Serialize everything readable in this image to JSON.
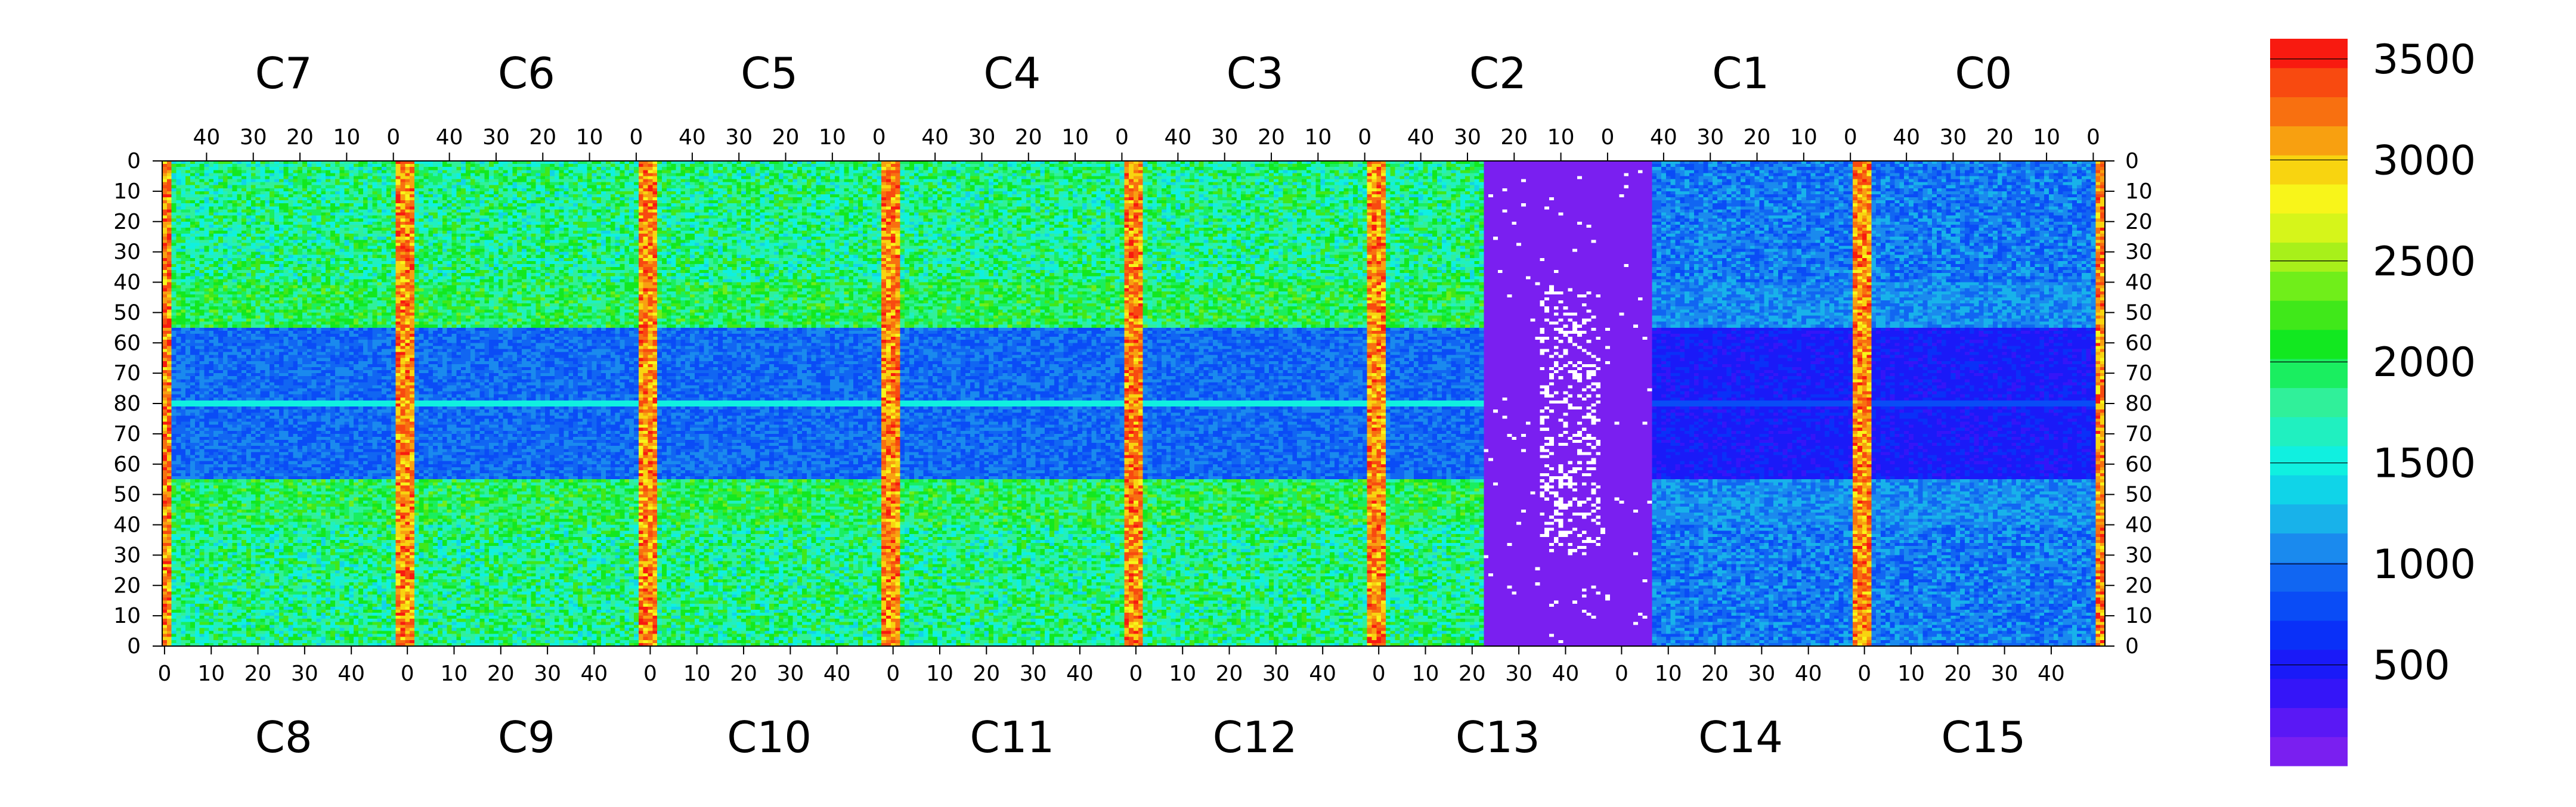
{
  "chart_data": {
    "type": "heatmap",
    "title": "",
    "top_chips": [
      "C7",
      "C6",
      "C5",
      "C4",
      "C3",
      "C2",
      "C1",
      "C0"
    ],
    "bottom_chips": [
      "C8",
      "C9",
      "C10",
      "C11",
      "C12",
      "C13",
      "C14",
      "C15"
    ],
    "top_x_ticks": [
      "40",
      "30",
      "20",
      "10",
      "0"
    ],
    "bottom_x_ticks": [
      "0",
      "10",
      "20",
      "30",
      "40"
    ],
    "y_ticks_left": [
      "0",
      "10",
      "20",
      "30",
      "40",
      "50",
      "60",
      "70",
      "80",
      "70",
      "60",
      "50",
      "40",
      "30",
      "20",
      "10",
      "0"
    ],
    "y_ticks_right": [
      "0",
      "10",
      "20",
      "30",
      "40",
      "50",
      "60",
      "70",
      "80",
      "70",
      "60",
      "50",
      "40",
      "30",
      "20",
      "10",
      "0"
    ],
    "colorbar": {
      "min": 0,
      "max": 3600,
      "tick_values": [
        500,
        1000,
        1500,
        2000,
        2500,
        3000,
        3500
      ],
      "tick_labels": [
        "500",
        "1000",
        "1500",
        "2000",
        "2500",
        "3000",
        "3500"
      ],
      "colors": [
        "#7a1ff0",
        "#5a18f5",
        "#3515f8",
        "#1a1af8",
        "#0a30f8",
        "#0a4cf6",
        "#1166f2",
        "#1a8aee",
        "#18b2ea",
        "#10d4e8",
        "#10f0e0",
        "#20f0c0",
        "#30f09a",
        "#1aee60",
        "#12e820",
        "#40e81a",
        "#70ee1a",
        "#a8f01a",
        "#d6f51a",
        "#f8f51a",
        "#f8d410",
        "#f8a010",
        "#f87010",
        "#f84a10",
        "#f81a10"
      ]
    },
    "grid": false
  }
}
